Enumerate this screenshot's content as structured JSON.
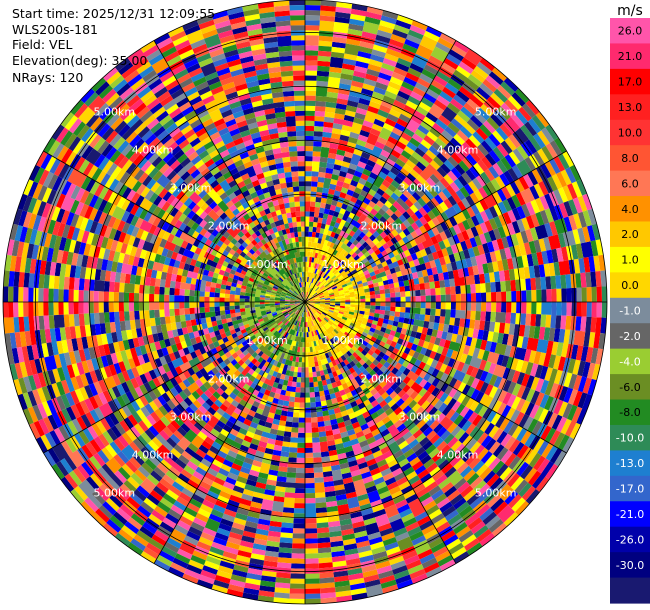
{
  "header": {
    "start_time": "Start time: 2025/12/31 12:09:55",
    "instrument": "WLS200s-181",
    "field": "Field: VEL",
    "elevation": "Elevation(deg): 35.00",
    "nrays": "NRays: 120"
  },
  "chart_data": {
    "type": "heatmap",
    "projection": "polar PPI",
    "field": "VEL",
    "n_rays": 120,
    "range_rings_km": [
      1,
      2,
      3,
      4,
      5
    ],
    "ring_labels": [
      "1.00km",
      "2.00km",
      "3.00km",
      "4.00km",
      "5.00km"
    ],
    "max_range_km": 5.6,
    "colorbar": {
      "unit": "m/s",
      "ticks": [
        "26.0",
        "21.0",
        "17.0",
        "13.0",
        "10.0",
        "8.0",
        "6.0",
        "4.0",
        "2.0",
        "1.0",
        "0.0",
        "-1.0",
        "-2.0",
        "-4.0",
        "-6.0",
        "-8.0",
        "-10.0",
        "-13.0",
        "-17.0",
        "-21.0",
        "-26.0",
        "-30.0"
      ],
      "colors": [
        "#ff55aa",
        "#ff2a6e",
        "#ff0000",
        "#ff2020",
        "#ff3333",
        "#ff5533",
        "#ff7755",
        "#ff9100",
        "#ffc800",
        "#ffff00",
        "#ffd700",
        "#7c8c9c",
        "#666666",
        "#9acd32",
        "#6b8e23",
        "#228b22",
        "#2e8b57",
        "#1e7fd0",
        "#3366cc",
        "#0000ff",
        "#0000aa",
        "#000080",
        "#191970"
      ],
      "range": [
        -30,
        26
      ]
    }
  }
}
